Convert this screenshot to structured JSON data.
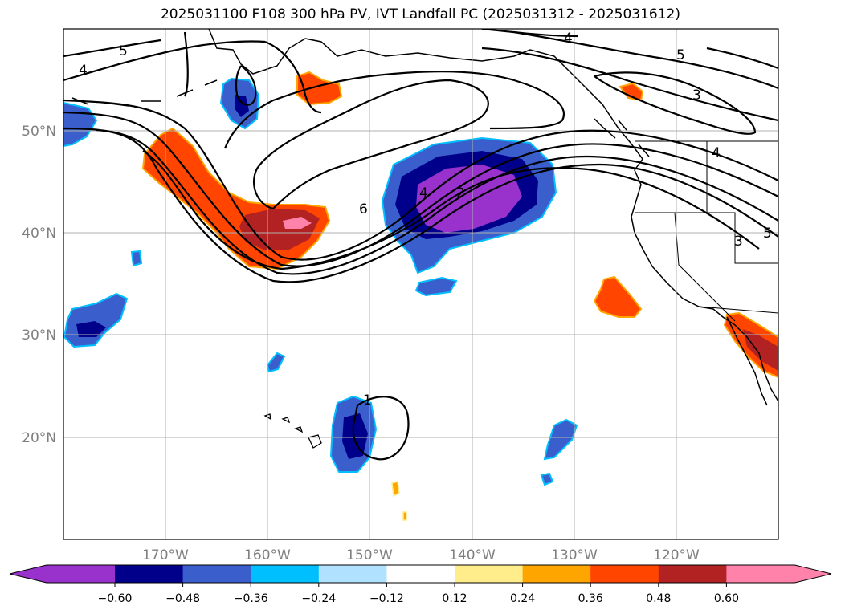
{
  "title": "2025031100 F108 300 hPa PV, IVT Landfall PC (2025031312 - 2025031612)",
  "map": {
    "lon_labels": [
      "170°W",
      "160°W",
      "150°W",
      "140°W",
      "130°W",
      "120°W"
    ],
    "lat_labels": [
      "50°N",
      "40°N",
      "30°N",
      "20°N"
    ],
    "contour_labels": [
      "5",
      "4",
      "4",
      "5",
      "3",
      "6",
      "4",
      "2",
      "4",
      "3",
      "5",
      "1"
    ]
  },
  "colorbar": {
    "ticks": [
      "−0.60",
      "−0.48",
      "−0.36",
      "−0.24",
      "−0.12",
      "0.12",
      "0.24",
      "0.36",
      "0.48",
      "0.60"
    ],
    "colors": [
      "#9932cc",
      "#00008b",
      "#3a5fcd",
      "#00bfff",
      "#b0e2ff",
      "#ffffff",
      "#ffec8b",
      "#ffa500",
      "#ff4500",
      "#b22222",
      "#ff82ab"
    ]
  }
}
